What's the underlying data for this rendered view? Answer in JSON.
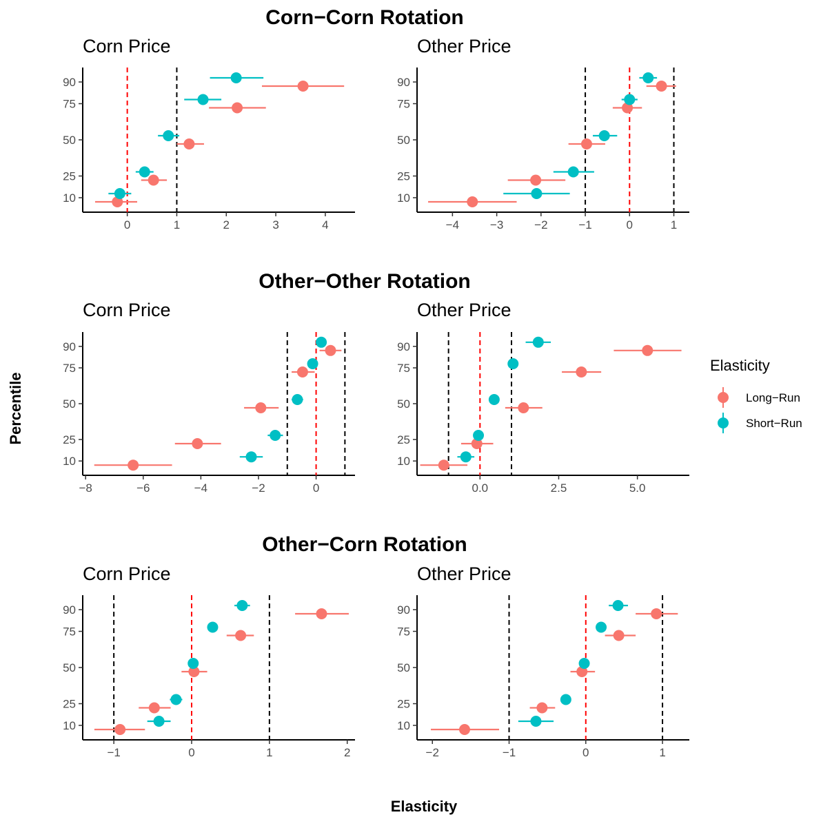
{
  "figure": {
    "xlabel": "Elasticity",
    "ylabel": "Percentile",
    "legend": {
      "title": "Elasticity",
      "placement": "right",
      "entries": [
        {
          "name": "Long−Run",
          "color": "#F8766D"
        },
        {
          "name": "Short−Run",
          "color": "#00BFC4"
        }
      ]
    },
    "row_titles": [
      "Corn−Corn Rotation",
      "Other−Other Rotation",
      "Other−Corn Rotation"
    ]
  },
  "chart_data": [
    {
      "type": "scatter",
      "row_title": "Corn−Corn Rotation",
      "title": "Corn Price",
      "xlim": [
        -0.9,
        4.6
      ],
      "xticks": [
        0,
        1,
        2,
        3,
        4
      ],
      "xtick_labels": [
        "0",
        "1",
        "2",
        "3",
        "4"
      ],
      "yticks": [
        10,
        25,
        50,
        75,
        90
      ],
      "ytick_labels": [
        "10",
        "25",
        "50",
        "75",
        "90"
      ],
      "ylim": [
        0,
        100
      ],
      "red_vline": 0,
      "black_vlines": [
        1
      ],
      "series": [
        {
          "name": "Long−Run",
          "color": "#F8766D",
          "points": [
            {
              "y": 10,
              "x": -0.2,
              "lo": -0.65,
              "hi": 0.2
            },
            {
              "y": 25,
              "x": 0.53,
              "lo": 0.28,
              "hi": 0.8
            },
            {
              "y": 50,
              "x": 1.25,
              "lo": 1.0,
              "hi": 1.55
            },
            {
              "y": 75,
              "x": 2.22,
              "lo": 1.65,
              "hi": 2.8
            },
            {
              "y": 90,
              "x": 3.55,
              "lo": 2.72,
              "hi": 4.38
            }
          ]
        },
        {
          "name": "Short−Run",
          "color": "#00BFC4",
          "points": [
            {
              "y": 10,
              "x": -0.15,
              "lo": -0.38,
              "hi": 0.08
            },
            {
              "y": 25,
              "x": 0.35,
              "lo": 0.17,
              "hi": 0.53
            },
            {
              "y": 50,
              "x": 0.83,
              "lo": 0.62,
              "hi": 1.05
            },
            {
              "y": 75,
              "x": 1.53,
              "lo": 1.15,
              "hi": 1.9
            },
            {
              "y": 90,
              "x": 2.2,
              "lo": 1.67,
              "hi": 2.75
            }
          ]
        }
      ]
    },
    {
      "type": "scatter",
      "row_title": "Corn−Corn Rotation",
      "title": "Other Price",
      "xlim": [
        -4.8,
        1.35
      ],
      "xticks": [
        -4,
        -3,
        -2,
        -1,
        0,
        1
      ],
      "xtick_labels": [
        "−4",
        "−3",
        "−2",
        "−1",
        "0",
        "1"
      ],
      "yticks": [
        10,
        25,
        50,
        75,
        90
      ],
      "ytick_labels": [
        "10",
        "25",
        "50",
        "75",
        "90"
      ],
      "ylim": [
        0,
        100
      ],
      "red_vline": 0,
      "black_vlines": [
        -1,
        1
      ],
      "series": [
        {
          "name": "Long−Run",
          "color": "#F8766D",
          "points": [
            {
              "y": 10,
              "x": -3.55,
              "lo": -4.55,
              "hi": -2.55
            },
            {
              "y": 25,
              "x": -2.12,
              "lo": -2.75,
              "hi": -1.45
            },
            {
              "y": 50,
              "x": -0.97,
              "lo": -1.38,
              "hi": -0.55
            },
            {
              "y": 75,
              "x": -0.05,
              "lo": -0.38,
              "hi": 0.28
            },
            {
              "y": 90,
              "x": 0.72,
              "lo": 0.38,
              "hi": 1.05
            }
          ]
        },
        {
          "name": "Short−Run",
          "color": "#00BFC4",
          "points": [
            {
              "y": 10,
              "x": -2.1,
              "lo": -2.85,
              "hi": -1.35
            },
            {
              "y": 25,
              "x": -1.27,
              "lo": -1.72,
              "hi": -0.8
            },
            {
              "y": 50,
              "x": -0.57,
              "lo": -0.83,
              "hi": -0.28
            },
            {
              "y": 75,
              "x": 0.0,
              "lo": -0.18,
              "hi": 0.18
            },
            {
              "y": 90,
              "x": 0.42,
              "lo": 0.22,
              "hi": 0.62
            }
          ]
        }
      ]
    },
    {
      "type": "scatter",
      "row_title": "Other−Other Rotation",
      "title": "Corn Price",
      "xlim": [
        -8.1,
        1.35
      ],
      "xticks": [
        -8,
        -6,
        -4,
        -2,
        0
      ],
      "xtick_labels": [
        "−8",
        "−6",
        "−4",
        "−2",
        "0"
      ],
      "yticks": [
        10,
        25,
        50,
        75,
        90
      ],
      "ytick_labels": [
        "10",
        "25",
        "50",
        "75",
        "90"
      ],
      "ylim": [
        0,
        100
      ],
      "red_vline": 0,
      "black_vlines": [
        -1,
        1
      ],
      "series": [
        {
          "name": "Long−Run",
          "color": "#F8766D",
          "points": [
            {
              "y": 10,
              "x": -6.35,
              "lo": -7.7,
              "hi": -5.0
            },
            {
              "y": 25,
              "x": -4.12,
              "lo": -4.9,
              "hi": -3.3
            },
            {
              "y": 50,
              "x": -1.92,
              "lo": -2.5,
              "hi": -1.3
            },
            {
              "y": 75,
              "x": -0.47,
              "lo": -0.85,
              "hi": -0.05
            },
            {
              "y": 90,
              "x": 0.5,
              "lo": 0.12,
              "hi": 0.88
            }
          ]
        },
        {
          "name": "Short−Run",
          "color": "#00BFC4",
          "points": [
            {
              "y": 10,
              "x": -2.25,
              "lo": -2.65,
              "hi": -1.85
            },
            {
              "y": 25,
              "x": -1.42,
              "lo": -1.68,
              "hi": -1.15
            },
            {
              "y": 50,
              "x": -0.65,
              "lo": -0.85,
              "hi": -0.45
            },
            {
              "y": 75,
              "x": -0.12,
              "lo": -0.25,
              "hi": 0.02
            },
            {
              "y": 90,
              "x": 0.18,
              "lo": 0.02,
              "hi": 0.35
            }
          ]
        }
      ]
    },
    {
      "type": "scatter",
      "row_title": "Other−Other Rotation",
      "title": "Other Price",
      "xlim": [
        -2.0,
        6.65
      ],
      "xticks": [
        0.0,
        2.5,
        5.0
      ],
      "xtick_labels": [
        "0.0",
        "2.5",
        "5.0"
      ],
      "yticks": [
        10,
        25,
        50,
        75,
        90
      ],
      "ytick_labels": [
        "10",
        "25",
        "50",
        "75",
        "90"
      ],
      "ylim": [
        0,
        100
      ],
      "red_vline": 0,
      "black_vlines": [
        -1,
        1
      ],
      "series": [
        {
          "name": "Long−Run",
          "color": "#F8766D",
          "points": [
            {
              "y": 10,
              "x": -1.15,
              "lo": -1.9,
              "hi": -0.4
            },
            {
              "y": 25,
              "x": -0.1,
              "lo": -0.6,
              "hi": 0.42
            },
            {
              "y": 50,
              "x": 1.38,
              "lo": 0.8,
              "hi": 1.98
            },
            {
              "y": 75,
              "x": 3.22,
              "lo": 2.6,
              "hi": 3.85
            },
            {
              "y": 90,
              "x": 5.32,
              "lo": 4.25,
              "hi": 6.4
            }
          ]
        },
        {
          "name": "Short−Run",
          "color": "#00BFC4",
          "points": [
            {
              "y": 10,
              "x": -0.45,
              "lo": -0.72,
              "hi": -0.18
            },
            {
              "y": 25,
              "x": -0.05,
              "lo": -0.18,
              "hi": 0.08
            },
            {
              "y": 50,
              "x": 0.45,
              "lo": 0.3,
              "hi": 0.6
            },
            {
              "y": 75,
              "x": 1.05,
              "lo": 0.88,
              "hi": 1.22
            },
            {
              "y": 90,
              "x": 1.85,
              "lo": 1.45,
              "hi": 2.25
            }
          ]
        }
      ]
    },
    {
      "type": "scatter",
      "row_title": "Other−Corn Rotation",
      "title": "Corn Price",
      "xlim": [
        -1.4,
        2.1
      ],
      "xticks": [
        -1,
        0,
        1,
        2
      ],
      "xtick_labels": [
        "−1",
        "0",
        "1",
        "2"
      ],
      "yticks": [
        10,
        25,
        50,
        75,
        90
      ],
      "ytick_labels": [
        "10",
        "25",
        "50",
        "75",
        "90"
      ],
      "ylim": [
        0,
        100
      ],
      "red_vline": 0,
      "black_vlines": [
        -1,
        1
      ],
      "series": [
        {
          "name": "Long−Run",
          "color": "#F8766D",
          "points": [
            {
              "y": 10,
              "x": -0.92,
              "lo": -1.25,
              "hi": -0.6
            },
            {
              "y": 25,
              "x": -0.48,
              "lo": -0.68,
              "hi": -0.27
            },
            {
              "y": 50,
              "x": 0.03,
              "lo": -0.13,
              "hi": 0.2
            },
            {
              "y": 75,
              "x": 0.63,
              "lo": 0.45,
              "hi": 0.8
            },
            {
              "y": 90,
              "x": 1.67,
              "lo": 1.33,
              "hi": 2.02
            }
          ]
        },
        {
          "name": "Short−Run",
          "color": "#00BFC4",
          "points": [
            {
              "y": 10,
              "x": -0.42,
              "lo": -0.57,
              "hi": -0.27
            },
            {
              "y": 25,
              "x": -0.2,
              "lo": -0.28,
              "hi": -0.12
            },
            {
              "y": 50,
              "x": 0.02,
              "lo": -0.04,
              "hi": 0.08
            },
            {
              "y": 75,
              "x": 0.27,
              "lo": 0.22,
              "hi": 0.32
            },
            {
              "y": 90,
              "x": 0.65,
              "lo": 0.55,
              "hi": 0.75
            }
          ]
        }
      ]
    },
    {
      "type": "scatter",
      "row_title": "Other−Corn Rotation",
      "title": "Other Price",
      "xlim": [
        -2.2,
        1.35
      ],
      "xticks": [
        -2,
        -1,
        0,
        1
      ],
      "xtick_labels": [
        "−2",
        "−1",
        "0",
        "1"
      ],
      "yticks": [
        10,
        25,
        50,
        75,
        90
      ],
      "ytick_labels": [
        "10",
        "25",
        "50",
        "75",
        "90"
      ],
      "ylim": [
        0,
        100
      ],
      "red_vline": 0,
      "black_vlines": [
        -1,
        1
      ],
      "series": [
        {
          "name": "Long−Run",
          "color": "#F8766D",
          "points": [
            {
              "y": 10,
              "x": -1.58,
              "lo": -2.02,
              "hi": -1.13
            },
            {
              "y": 25,
              "x": -0.57,
              "lo": -0.73,
              "hi": -0.4
            },
            {
              "y": 50,
              "x": -0.05,
              "lo": -0.2,
              "hi": 0.12
            },
            {
              "y": 75,
              "x": 0.43,
              "lo": 0.25,
              "hi": 0.65
            },
            {
              "y": 90,
              "x": 0.92,
              "lo": 0.65,
              "hi": 1.2
            }
          ]
        },
        {
          "name": "Short−Run",
          "color": "#00BFC4",
          "points": [
            {
              "y": 10,
              "x": -0.65,
              "lo": -0.88,
              "hi": -0.42
            },
            {
              "y": 25,
              "x": -0.26,
              "lo": -0.31,
              "hi": -0.21
            },
            {
              "y": 50,
              "x": -0.02,
              "lo": -0.06,
              "hi": 0.02
            },
            {
              "y": 75,
              "x": 0.2,
              "lo": 0.13,
              "hi": 0.27
            },
            {
              "y": 90,
              "x": 0.42,
              "lo": 0.3,
              "hi": 0.55
            }
          ]
        }
      ]
    }
  ]
}
